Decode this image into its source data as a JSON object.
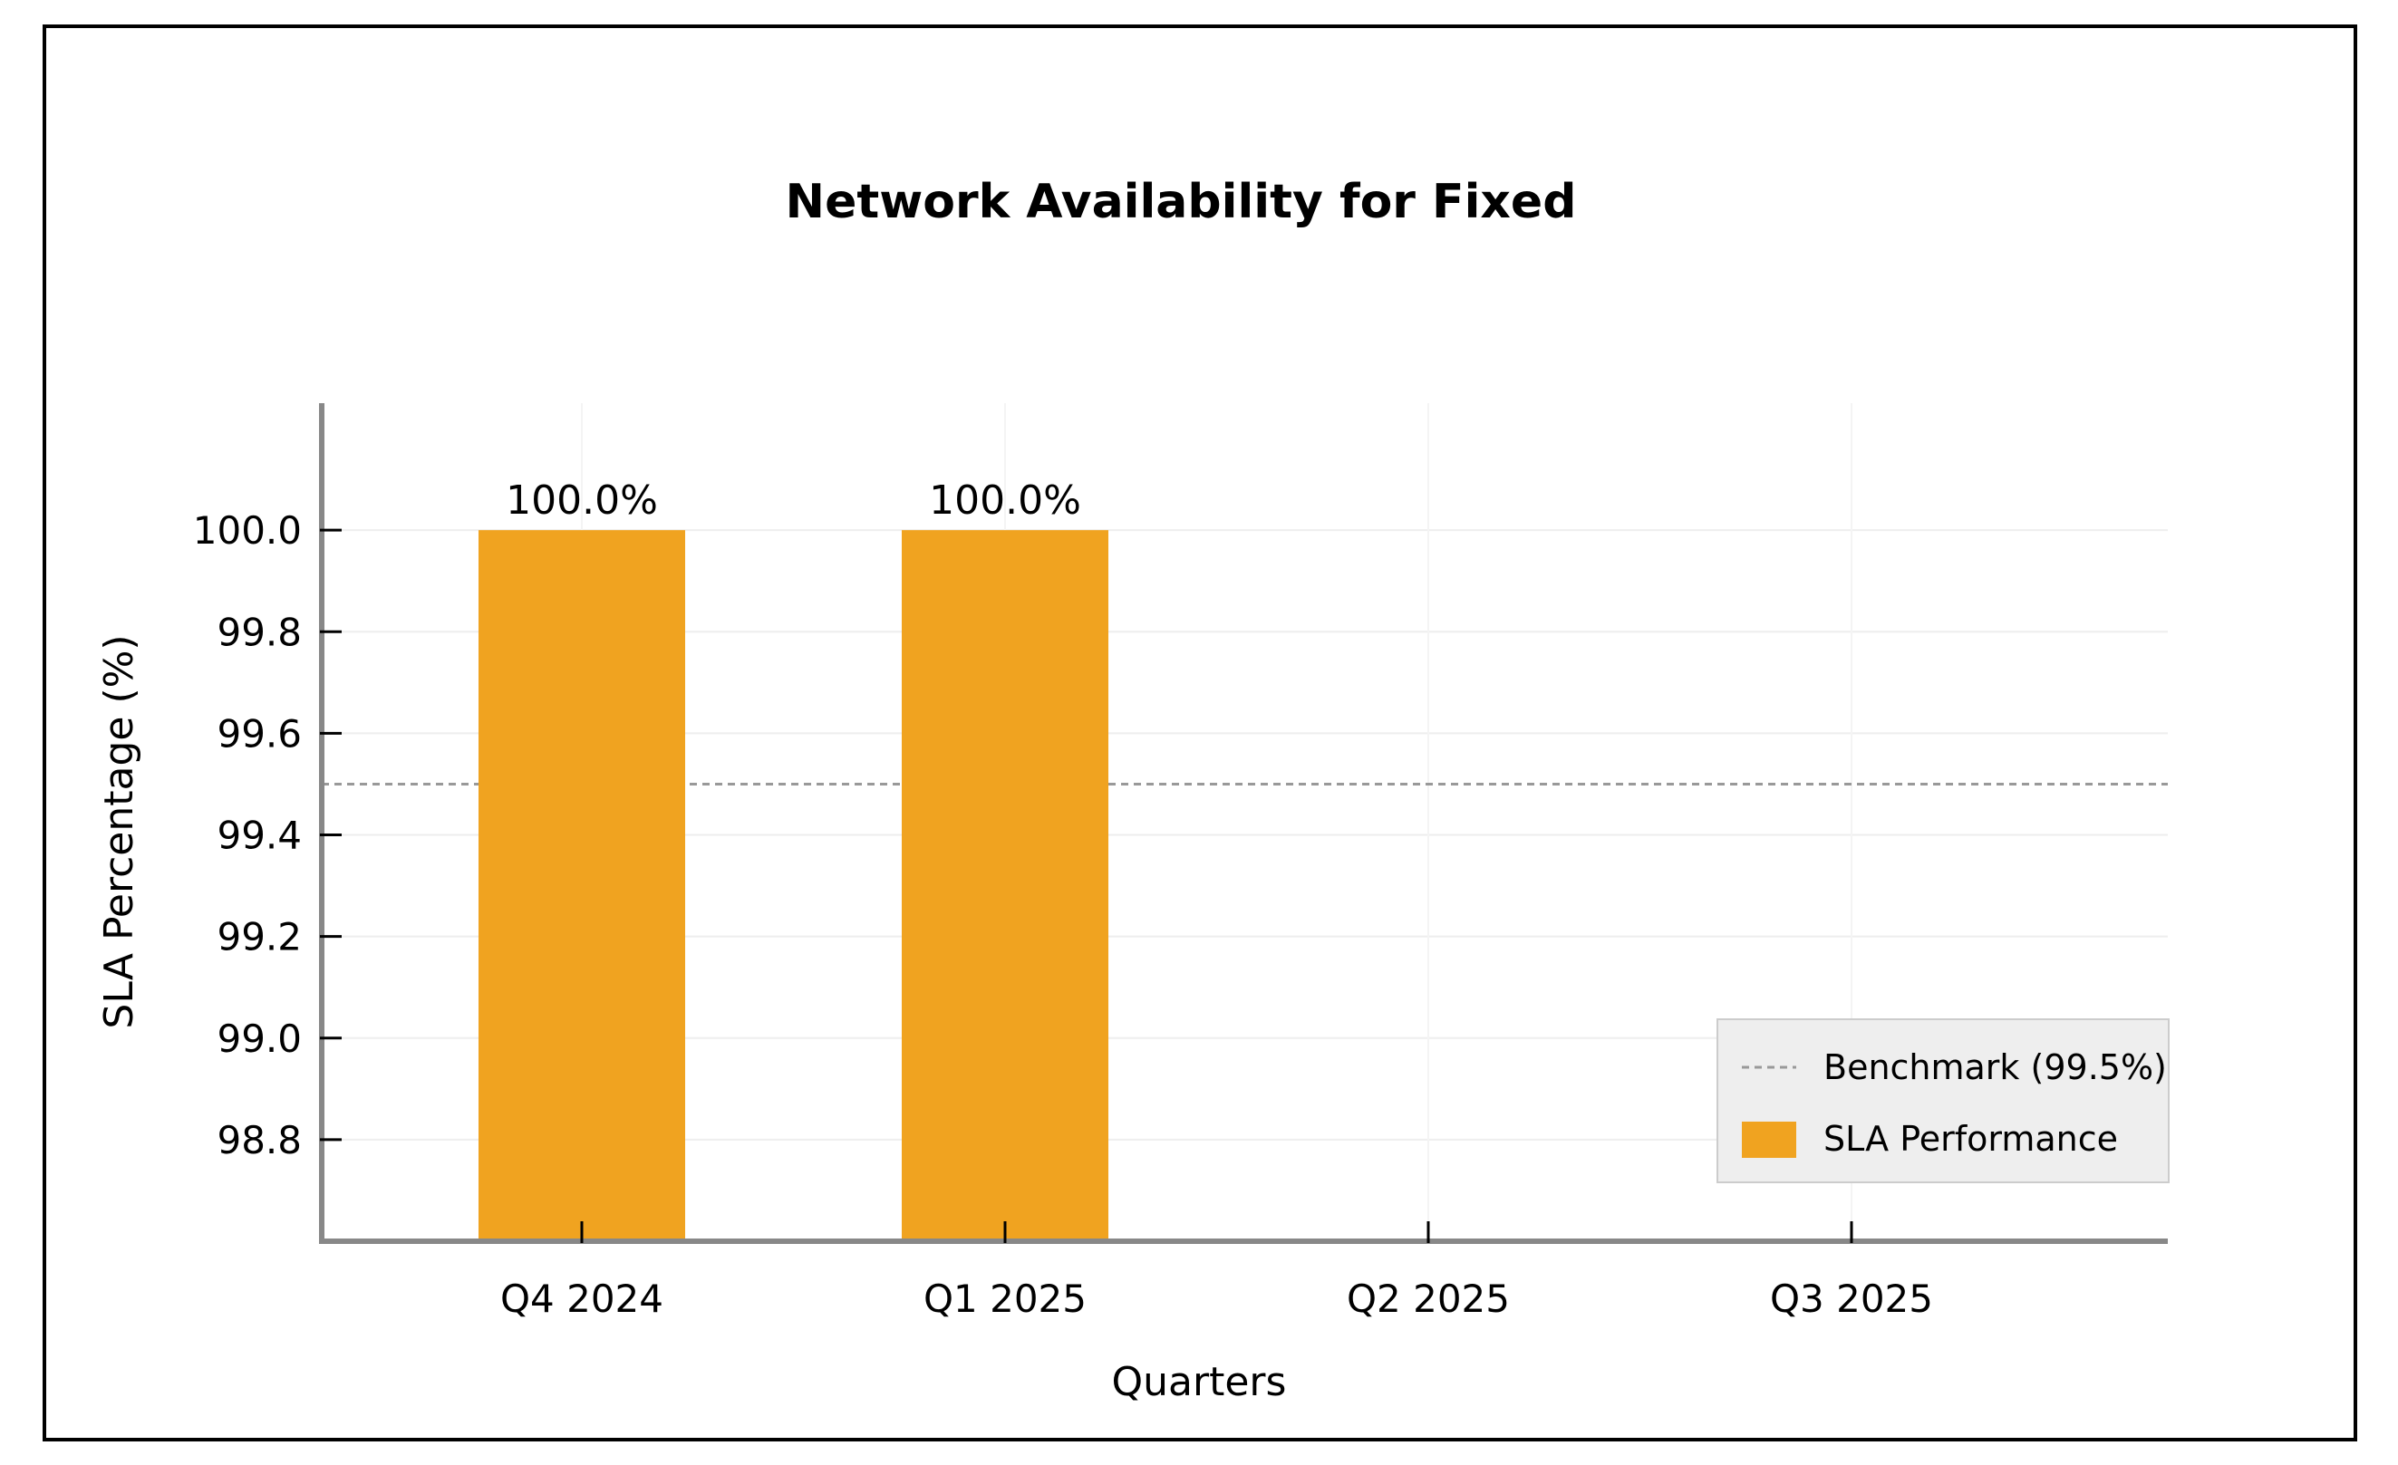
{
  "chart_data": {
    "type": "bar",
    "title": "Network Availability for Fixed",
    "xlabel": "Quarters",
    "ylabel": "SLA Percentage (%)",
    "categories": [
      "Q4 2024",
      "Q1 2025",
      "Q2 2025",
      "Q3 2025"
    ],
    "series": [
      {
        "name": "SLA Performance",
        "values": [
          100.0,
          100.0,
          null,
          null
        ],
        "color": "#F0A320"
      }
    ],
    "data_labels": [
      "100.0%",
      "100.0%",
      "",
      ""
    ],
    "benchmark": {
      "name": "Benchmark (99.5%)",
      "value": 99.5,
      "color": "#999999"
    },
    "ylim": [
      98.6,
      100.25
    ],
    "yticks": [
      98.8,
      99.0,
      99.2,
      99.4,
      99.6,
      99.8,
      100.0
    ],
    "ytick_labels": [
      "98.8",
      "99.0",
      "99.2",
      "99.4",
      "99.6",
      "99.8",
      "100.0"
    ],
    "grid": true,
    "legend_position": "bottom-right",
    "axis_color": "#888888"
  }
}
